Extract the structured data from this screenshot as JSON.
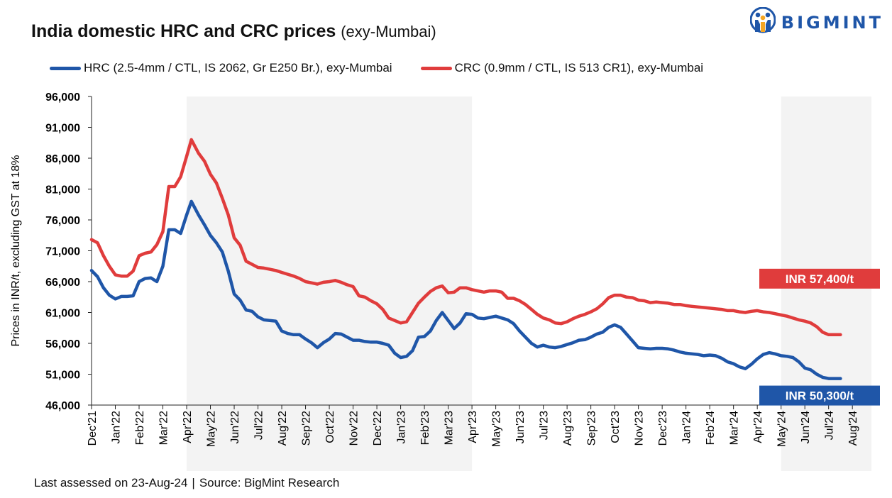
{
  "header": {
    "title_main": "India domestic HRC and CRC prices",
    "title_sub": "(exy-Mumbai)"
  },
  "logo": {
    "text": "BIGMINT",
    "icon": "bigmint-logo-icon",
    "color": "#1f56a8"
  },
  "footer": {
    "assessed": "Last assessed on 23-Aug-24",
    "separator": "|",
    "source": "Source: BigMint Research"
  },
  "chart_data": {
    "type": "line",
    "ylabel": "Prices in INR/t, excluding GST at 18%",
    "ylim": [
      46000,
      96000
    ],
    "yticks": [
      46000,
      51000,
      56000,
      61000,
      66000,
      71000,
      76000,
      81000,
      86000,
      91000,
      96000
    ],
    "ytick_labels": [
      "46,000",
      "51,000",
      "56,000",
      "61,000",
      "66,000",
      "71,000",
      "76,000",
      "81,000",
      "86,000",
      "91,000",
      "96,000"
    ],
    "x_start": "Dec'21",
    "x_end": "Aug'24",
    "xtick_labels": [
      "Dec'21",
      "Jan'22",
      "Feb'22",
      "Mar'22",
      "Apr'22",
      "May'22",
      "Jun'22",
      "Jul'22",
      "Aug'22",
      "Sep'22",
      "Oct'22",
      "Nov'22",
      "Dec'22",
      "Jan'23",
      "Feb'23",
      "Mar'23",
      "Apr'23",
      "May'23",
      "Jun'23",
      "Jul'23",
      "Aug'23",
      "Sep'23",
      "Oct'23",
      "Nov'23",
      "Dec'23",
      "Jan'24",
      "Feb'24",
      "Mar'24",
      "Apr'24",
      "May'24",
      "Jun'24",
      "Jul'24",
      "Aug'24"
    ],
    "shaded_ranges": [
      [
        "Apr'22",
        "Apr'23"
      ],
      [
        "May'24",
        "Aug'24"
      ]
    ],
    "legend_position": "top",
    "grid": false,
    "series": [
      {
        "name": "HRC (2.5-4mm / CTL, IS 2062, Gr E250 Br.), exy-Mumbai",
        "color": "#1f56a8",
        "end_label": "INR 50,300/t",
        "points": [
          [
            0,
            67800
          ],
          [
            0.25,
            66800
          ],
          [
            0.5,
            65000
          ],
          [
            0.75,
            63800
          ],
          [
            1.0,
            63200
          ],
          [
            1.25,
            63600
          ],
          [
            1.5,
            63600
          ],
          [
            1.75,
            63700
          ],
          [
            2.0,
            66000
          ],
          [
            2.25,
            66500
          ],
          [
            2.5,
            66600
          ],
          [
            2.75,
            66000
          ],
          [
            3.0,
            68500
          ],
          [
            3.25,
            74400
          ],
          [
            3.5,
            74400
          ],
          [
            3.75,
            73800
          ],
          [
            4.0,
            76800
          ],
          [
            4.2,
            79000
          ],
          [
            4.5,
            76800
          ],
          [
            4.75,
            75200
          ],
          [
            5.0,
            73500
          ],
          [
            5.25,
            72300
          ],
          [
            5.5,
            70800
          ],
          [
            5.75,
            67700
          ],
          [
            6.0,
            64000
          ],
          [
            6.25,
            63000
          ],
          [
            6.5,
            61400
          ],
          [
            6.75,
            61200
          ],
          [
            7.0,
            60300
          ],
          [
            7.25,
            59800
          ],
          [
            7.5,
            59700
          ],
          [
            7.75,
            59600
          ],
          [
            8.0,
            58000
          ],
          [
            8.25,
            57600
          ],
          [
            8.5,
            57400
          ],
          [
            8.75,
            57400
          ],
          [
            9.0,
            56700
          ],
          [
            9.25,
            56100
          ],
          [
            9.5,
            55300
          ],
          [
            9.75,
            56100
          ],
          [
            10.0,
            56700
          ],
          [
            10.25,
            57600
          ],
          [
            10.5,
            57500
          ],
          [
            10.75,
            57000
          ],
          [
            11.0,
            56500
          ],
          [
            11.25,
            56500
          ],
          [
            11.5,
            56300
          ],
          [
            11.75,
            56200
          ],
          [
            12.0,
            56200
          ],
          [
            12.25,
            56000
          ],
          [
            12.5,
            55700
          ],
          [
            12.75,
            54400
          ],
          [
            13.0,
            53700
          ],
          [
            13.25,
            53900
          ],
          [
            13.5,
            54800
          ],
          [
            13.75,
            57000
          ],
          [
            14.0,
            57100
          ],
          [
            14.25,
            58000
          ],
          [
            14.5,
            59700
          ],
          [
            14.75,
            61000
          ],
          [
            15.0,
            59700
          ],
          [
            15.25,
            58400
          ],
          [
            15.5,
            59300
          ],
          [
            15.75,
            60800
          ],
          [
            16.0,
            60700
          ],
          [
            16.25,
            60100
          ],
          [
            16.5,
            60000
          ],
          [
            16.75,
            60200
          ],
          [
            17.0,
            60400
          ],
          [
            17.25,
            60100
          ],
          [
            17.5,
            59800
          ],
          [
            17.75,
            59200
          ],
          [
            18.0,
            58000
          ],
          [
            18.25,
            57000
          ],
          [
            18.5,
            56000
          ],
          [
            18.75,
            55400
          ],
          [
            19.0,
            55700
          ],
          [
            19.25,
            55400
          ],
          [
            19.5,
            55300
          ],
          [
            19.75,
            55500
          ],
          [
            20.0,
            55800
          ],
          [
            20.25,
            56100
          ],
          [
            20.5,
            56500
          ],
          [
            20.75,
            56600
          ],
          [
            21.0,
            57000
          ],
          [
            21.25,
            57500
          ],
          [
            21.5,
            57800
          ],
          [
            21.75,
            58600
          ],
          [
            22.0,
            59000
          ],
          [
            22.25,
            58600
          ],
          [
            22.5,
            57500
          ],
          [
            22.75,
            56400
          ],
          [
            23.0,
            55300
          ],
          [
            23.25,
            55200
          ],
          [
            23.5,
            55100
          ],
          [
            23.75,
            55200
          ],
          [
            24.0,
            55200
          ],
          [
            24.25,
            55100
          ],
          [
            24.5,
            54900
          ],
          [
            24.75,
            54600
          ],
          [
            25.0,
            54400
          ],
          [
            25.25,
            54300
          ],
          [
            25.5,
            54200
          ],
          [
            25.75,
            54000
          ],
          [
            26.0,
            54100
          ],
          [
            26.25,
            54000
          ],
          [
            26.5,
            53600
          ],
          [
            26.75,
            53000
          ],
          [
            27.0,
            52700
          ],
          [
            27.25,
            52200
          ],
          [
            27.5,
            51900
          ],
          [
            27.75,
            52600
          ],
          [
            28.0,
            53500
          ],
          [
            28.25,
            54200
          ],
          [
            28.5,
            54500
          ],
          [
            28.75,
            54300
          ],
          [
            29.0,
            54000
          ],
          [
            29.25,
            53900
          ],
          [
            29.5,
            53700
          ],
          [
            29.75,
            53000
          ],
          [
            30.0,
            52000
          ],
          [
            30.25,
            51700
          ],
          [
            30.5,
            51000
          ],
          [
            30.75,
            50500
          ],
          [
            31.0,
            50300
          ],
          [
            31.5,
            50300
          ]
        ]
      },
      {
        "name": "CRC (0.9mm / CTL, IS 513 CR1), exy-Mumbai",
        "color": "#e03c3c",
        "end_label": "INR 57,400/t",
        "points": [
          [
            0,
            72800
          ],
          [
            0.25,
            72300
          ],
          [
            0.5,
            70200
          ],
          [
            0.75,
            68500
          ],
          [
            1.0,
            67100
          ],
          [
            1.25,
            66900
          ],
          [
            1.5,
            66900
          ],
          [
            1.75,
            67700
          ],
          [
            2.0,
            70200
          ],
          [
            2.25,
            70600
          ],
          [
            2.5,
            70800
          ],
          [
            2.75,
            72000
          ],
          [
            3.0,
            74100
          ],
          [
            3.25,
            81400
          ],
          [
            3.5,
            81400
          ],
          [
            3.75,
            83000
          ],
          [
            4.0,
            86300
          ],
          [
            4.2,
            89000
          ],
          [
            4.5,
            86800
          ],
          [
            4.75,
            85500
          ],
          [
            5.0,
            83400
          ],
          [
            5.25,
            82000
          ],
          [
            5.5,
            79500
          ],
          [
            5.75,
            76800
          ],
          [
            6.0,
            73100
          ],
          [
            6.25,
            71900
          ],
          [
            6.5,
            69300
          ],
          [
            6.75,
            68800
          ],
          [
            7.0,
            68300
          ],
          [
            7.25,
            68200
          ],
          [
            7.5,
            68000
          ],
          [
            7.75,
            67800
          ],
          [
            8.0,
            67500
          ],
          [
            8.25,
            67200
          ],
          [
            8.5,
            66900
          ],
          [
            8.75,
            66500
          ],
          [
            9.0,
            66000
          ],
          [
            9.25,
            65800
          ],
          [
            9.5,
            65600
          ],
          [
            9.75,
            65900
          ],
          [
            10.0,
            66000
          ],
          [
            10.25,
            66200
          ],
          [
            10.5,
            65900
          ],
          [
            10.75,
            65500
          ],
          [
            11.0,
            65200
          ],
          [
            11.25,
            63700
          ],
          [
            11.5,
            63500
          ],
          [
            11.75,
            62900
          ],
          [
            12.0,
            62400
          ],
          [
            12.25,
            61500
          ],
          [
            12.5,
            60100
          ],
          [
            12.75,
            59700
          ],
          [
            13.0,
            59300
          ],
          [
            13.25,
            59500
          ],
          [
            13.5,
            61000
          ],
          [
            13.75,
            62500
          ],
          [
            14.0,
            63500
          ],
          [
            14.25,
            64400
          ],
          [
            14.5,
            65000
          ],
          [
            14.75,
            65300
          ],
          [
            15.0,
            64200
          ],
          [
            15.25,
            64300
          ],
          [
            15.5,
            65000
          ],
          [
            15.75,
            65000
          ],
          [
            16.0,
            64700
          ],
          [
            16.25,
            64500
          ],
          [
            16.5,
            64300
          ],
          [
            16.75,
            64500
          ],
          [
            17.0,
            64500
          ],
          [
            17.25,
            64300
          ],
          [
            17.5,
            63300
          ],
          [
            17.75,
            63300
          ],
          [
            18.0,
            62900
          ],
          [
            18.25,
            62300
          ],
          [
            18.5,
            61500
          ],
          [
            18.75,
            60700
          ],
          [
            19.0,
            60100
          ],
          [
            19.25,
            59800
          ],
          [
            19.5,
            59300
          ],
          [
            19.75,
            59200
          ],
          [
            20.0,
            59500
          ],
          [
            20.25,
            60000
          ],
          [
            20.5,
            60400
          ],
          [
            20.75,
            60700
          ],
          [
            21.0,
            61100
          ],
          [
            21.25,
            61600
          ],
          [
            21.5,
            62400
          ],
          [
            21.75,
            63400
          ],
          [
            22.0,
            63800
          ],
          [
            22.25,
            63800
          ],
          [
            22.5,
            63500
          ],
          [
            22.75,
            63400
          ],
          [
            23.0,
            63000
          ],
          [
            23.25,
            62900
          ],
          [
            23.5,
            62600
          ],
          [
            23.75,
            62700
          ],
          [
            24.0,
            62600
          ],
          [
            24.25,
            62500
          ],
          [
            24.5,
            62300
          ],
          [
            24.75,
            62300
          ],
          [
            25.0,
            62100
          ],
          [
            25.25,
            62000
          ],
          [
            25.5,
            61900
          ],
          [
            25.75,
            61800
          ],
          [
            26.0,
            61700
          ],
          [
            26.25,
            61600
          ],
          [
            26.5,
            61500
          ],
          [
            26.75,
            61300
          ],
          [
            27.0,
            61300
          ],
          [
            27.25,
            61100
          ],
          [
            27.5,
            61000
          ],
          [
            27.75,
            61200
          ],
          [
            28.0,
            61300
          ],
          [
            28.25,
            61100
          ],
          [
            28.5,
            61000
          ],
          [
            28.75,
            60800
          ],
          [
            29.0,
            60600
          ],
          [
            29.25,
            60400
          ],
          [
            29.5,
            60100
          ],
          [
            29.75,
            59800
          ],
          [
            30.0,
            59600
          ],
          [
            30.25,
            59300
          ],
          [
            30.5,
            58700
          ],
          [
            30.75,
            57800
          ],
          [
            31.0,
            57400
          ],
          [
            31.5,
            57400
          ]
        ]
      }
    ]
  }
}
